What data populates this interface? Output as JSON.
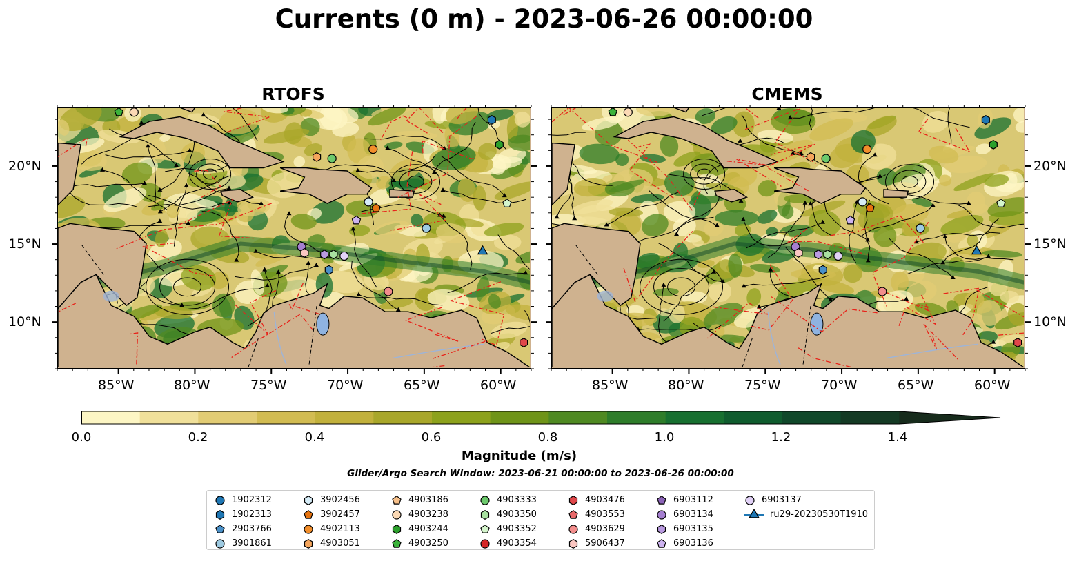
{
  "title": "Currents (0 m) - 2023-06-26 00:00:00",
  "panels": [
    {
      "title": "RTOFS"
    },
    {
      "title": "CMEMS"
    }
  ],
  "axes": {
    "lon_labels": [
      "85°W",
      "80°W",
      "75°W",
      "70°W",
      "65°W",
      "60°W"
    ],
    "lat_labels": [
      "20°N",
      "15°N",
      "10°N"
    ],
    "lon_range": [
      -89,
      -58
    ],
    "lat_range": [
      7.0,
      23.8
    ]
  },
  "colorbar": {
    "label": "Magnitude (m/s)",
    "ticks": [
      "0.0",
      "0.2",
      "0.4",
      "0.6",
      "0.8",
      "1.0",
      "1.2",
      "1.4"
    ],
    "range": [
      0,
      1.5
    ],
    "colors": [
      "#fdf6c4",
      "#f0e09a",
      "#e2cc74",
      "#d2bc52",
      "#c2b13c",
      "#a9a72a",
      "#8da21c",
      "#6f9418",
      "#4f8a22",
      "#2e7d2a",
      "#177030",
      "#0f5c2e",
      "#10482a",
      "#143a24",
      "#172b1c"
    ]
  },
  "search_window": "Glider/Argo Search Window: 2023-06-21 00:00:00 to 2023-06-26 00:00:00",
  "legend": [
    {
      "label": "1902312",
      "marker": "circle",
      "color": "#1f77b4"
    },
    {
      "label": "1902313",
      "marker": "hexagon",
      "color": "#1f77b4"
    },
    {
      "label": "2903766",
      "marker": "pentagon",
      "color": "#4a90c8"
    },
    {
      "label": "3901861",
      "marker": "circle",
      "color": "#9ecae1"
    },
    {
      "label": "3902456",
      "marker": "hexagon",
      "color": "#d6ecf7"
    },
    {
      "label": "3902457",
      "marker": "pentagon",
      "color": "#e6730f"
    },
    {
      "label": "4902113",
      "marker": "circle",
      "color": "#f28e2b"
    },
    {
      "label": "4903051",
      "marker": "hexagon",
      "color": "#f5a55c"
    },
    {
      "label": "4903186",
      "marker": "pentagon",
      "color": "#f7c08a"
    },
    {
      "label": "4903238",
      "marker": "circle",
      "color": "#fbd9b5"
    },
    {
      "label": "4903244",
      "marker": "hexagon",
      "color": "#2ca02c"
    },
    {
      "label": "4903250",
      "marker": "pentagon",
      "color": "#3bb33b"
    },
    {
      "label": "4903333",
      "marker": "circle",
      "color": "#6cc96c"
    },
    {
      "label": "4903350",
      "marker": "hexagon",
      "color": "#a8e0a0"
    },
    {
      "label": "4903352",
      "marker": "pentagon",
      "color": "#d4f5cc"
    },
    {
      "label": "4903354",
      "marker": "circle",
      "color": "#d62728"
    },
    {
      "label": "4903476",
      "marker": "hexagon",
      "color": "#e0474a"
    },
    {
      "label": "4903553",
      "marker": "pentagon",
      "color": "#e8696a"
    },
    {
      "label": "4903629",
      "marker": "circle",
      "color": "#f28d8c"
    },
    {
      "label": "5906437",
      "marker": "hexagon",
      "color": "#fbc7c2"
    },
    {
      "label": "6903112",
      "marker": "pentagon",
      "color": "#8c64b8"
    },
    {
      "label": "6903134",
      "marker": "circle",
      "color": "#a57fd0"
    },
    {
      "label": "6903135",
      "marker": "hexagon",
      "color": "#b99ae0"
    },
    {
      "label": "6903136",
      "marker": "pentagon",
      "color": "#cdb3ef"
    },
    {
      "label": "6903137",
      "marker": "circle",
      "color": "#e2d2f7"
    },
    {
      "label": "ru29-20230530T1910",
      "marker": "triangle-line",
      "color": "#1f77b4"
    }
  ],
  "floats": [
    {
      "lon": -60.5,
      "lat": 23.0,
      "marker": "hexagon",
      "color": "#1f77b4"
    },
    {
      "lon": -60.0,
      "lat": 21.4,
      "marker": "hexagon",
      "color": "#2ca02c"
    },
    {
      "lon": -59.5,
      "lat": 17.6,
      "marker": "pentagon",
      "color": "#d4f5cc"
    },
    {
      "lon": -64.8,
      "lat": 16.0,
      "marker": "circle",
      "color": "#9ecae1"
    },
    {
      "lon": -68.6,
      "lat": 17.7,
      "marker": "circle",
      "color": "#d6ecf7"
    },
    {
      "lon": -68.1,
      "lat": 17.3,
      "marker": "pentagon",
      "color": "#e6730f"
    },
    {
      "lon": -68.3,
      "lat": 21.1,
      "marker": "circle",
      "color": "#f28e2b"
    },
    {
      "lon": -71.0,
      "lat": 20.5,
      "marker": "circle",
      "color": "#6cc96c"
    },
    {
      "lon": -72.0,
      "lat": 20.6,
      "marker": "hexagon",
      "color": "#f5a55c"
    },
    {
      "lon": -69.4,
      "lat": 16.5,
      "marker": "pentagon",
      "color": "#cdb3ef"
    },
    {
      "lon": -73.0,
      "lat": 14.8,
      "marker": "circle",
      "color": "#a57fd0"
    },
    {
      "lon": -72.8,
      "lat": 14.4,
      "marker": "hexagon",
      "color": "#fbc7c2"
    },
    {
      "lon": -71.5,
      "lat": 14.3,
      "marker": "hexagon",
      "color": "#b99ae0"
    },
    {
      "lon": -70.9,
      "lat": 14.3,
      "marker": "hexagon",
      "color": "#a8e0a0"
    },
    {
      "lon": -70.2,
      "lat": 14.2,
      "marker": "circle",
      "color": "#e2d2f7"
    },
    {
      "lon": -71.2,
      "lat": 13.3,
      "marker": "hexagon",
      "color": "#4a90c8"
    },
    {
      "lon": -67.3,
      "lat": 11.9,
      "marker": "circle",
      "color": "#f28d8c"
    },
    {
      "lon": -85.0,
      "lat": 23.5,
      "marker": "pentagon",
      "color": "#3bb33b"
    },
    {
      "lon": -84.0,
      "lat": 23.5,
      "marker": "circle",
      "color": "#fbd9b5"
    },
    {
      "lon": -58.4,
      "lat": 8.6,
      "marker": "hexagon",
      "color": "#e0474a"
    },
    {
      "lon": -61.1,
      "lat": 14.5,
      "marker": "triangle",
      "color": "#1f77b4"
    }
  ]
}
